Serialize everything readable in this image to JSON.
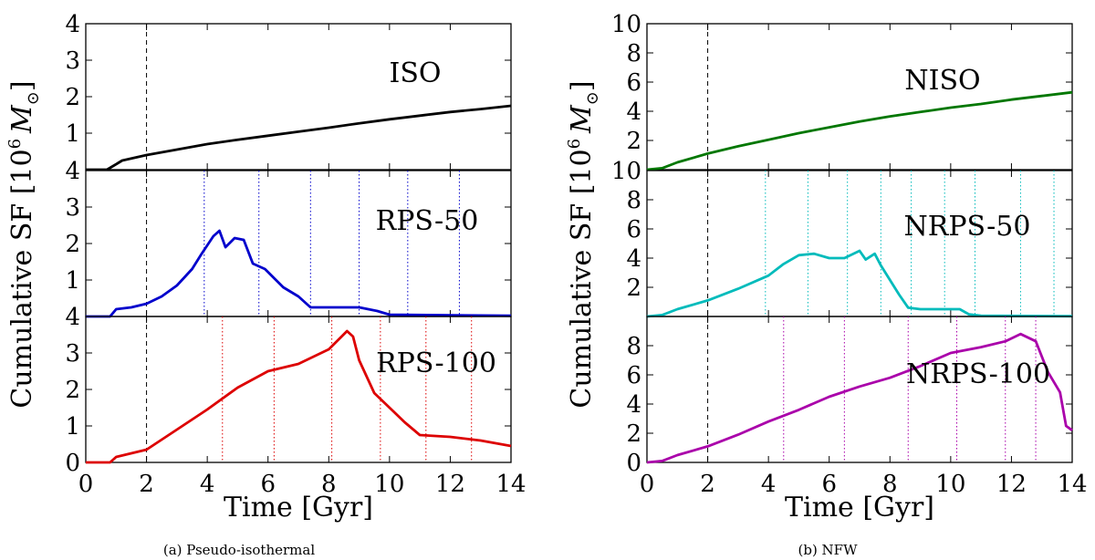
{
  "figure": {
    "ylabel": "Cumulative SF [10",
    "ylabel_sup": "6",
    "ylabel_unit": "M",
    "ylabel_sub": "⊙",
    "ylabel_close": "]",
    "xlabel": "Time [Gyr]"
  },
  "chart_data": [
    {
      "group": "(a) Pseudo-isothermal",
      "caption": "(a) Pseudo-isothermal",
      "type": "line",
      "xlim": [
        0,
        14
      ],
      "xticks": [
        "0",
        "2",
        "4",
        "6",
        "8",
        "10",
        "12",
        "14"
      ],
      "xlabel": "Time [Gyr]",
      "start_line_x": 2,
      "panels": [
        {
          "label": "ISO",
          "color": "#000000",
          "ylim": [
            0,
            4
          ],
          "yticks": [
            "1",
            "2",
            "3",
            "4"
          ],
          "marker_lines": [],
          "x": [
            0,
            0.7,
            0.9,
            1.2,
            2,
            3,
            4,
            5,
            6,
            7,
            8,
            9,
            10,
            11,
            12,
            13,
            14
          ],
          "y": [
            0,
            0,
            0.1,
            0.25,
            0.4,
            0.55,
            0.7,
            0.82,
            0.93,
            1.04,
            1.15,
            1.27,
            1.38,
            1.48,
            1.58,
            1.66,
            1.75
          ]
        },
        {
          "label": "RPS-50",
          "color": "#0000cc",
          "ylim": [
            0,
            4
          ],
          "yticks": [
            "1",
            "2",
            "3",
            "4"
          ],
          "marker_lines": [
            3.9,
            5.7,
            7.4,
            9.0,
            10.6,
            12.3
          ],
          "x": [
            0,
            0.8,
            1,
            1.5,
            2,
            2.5,
            3,
            3.5,
            3.8,
            4.2,
            4.4,
            4.6,
            4.9,
            5.2,
            5.5,
            5.9,
            6.5,
            7.0,
            7.4,
            8,
            9,
            9.6,
            10,
            14
          ],
          "y": [
            0,
            0,
            0.2,
            0.25,
            0.35,
            0.55,
            0.85,
            1.3,
            1.7,
            2.2,
            2.35,
            1.9,
            2.15,
            2.1,
            1.45,
            1.3,
            0.8,
            0.55,
            0.25,
            0.25,
            0.25,
            0.15,
            0.05,
            0.02
          ]
        },
        {
          "label": "RPS-100",
          "color": "#dd0000",
          "ylim": [
            0,
            4
          ],
          "yticks": [
            "0",
            "1",
            "2",
            "3",
            "4"
          ],
          "marker_lines": [
            4.5,
            6.2,
            8.1,
            9.7,
            11.2,
            12.7
          ],
          "x": [
            0,
            0.8,
            1,
            2,
            3,
            4,
            5,
            6,
            7,
            8,
            8.6,
            8.8,
            9,
            9.5,
            10,
            10.5,
            11,
            12,
            13,
            14
          ],
          "y": [
            0,
            0,
            0.15,
            0.35,
            0.9,
            1.45,
            2.05,
            2.5,
            2.7,
            3.1,
            3.6,
            3.45,
            2.8,
            1.9,
            1.5,
            1.1,
            0.75,
            0.7,
            0.6,
            0.45
          ]
        }
      ]
    },
    {
      "group": "(b) NFW",
      "caption": "(b) NFW",
      "type": "line",
      "xlim": [
        0,
        14
      ],
      "xticks": [
        "0",
        "2",
        "4",
        "6",
        "8",
        "10",
        "12",
        "14"
      ],
      "xlabel": "Time [Gyr]",
      "start_line_x": 2,
      "panels": [
        {
          "label": "NISO",
          "color": "#007700",
          "ylim": [
            0,
            10
          ],
          "yticks": [
            "2",
            "4",
            "6",
            "8",
            "10"
          ],
          "marker_lines": [],
          "x": [
            0,
            0.5,
            1,
            2,
            3,
            4,
            5,
            6,
            7,
            8,
            9,
            10,
            11,
            12,
            13,
            14
          ],
          "y": [
            0,
            0.1,
            0.5,
            1.1,
            1.6,
            2.05,
            2.5,
            2.9,
            3.3,
            3.65,
            3.95,
            4.25,
            4.5,
            4.8,
            5.05,
            5.3
          ]
        },
        {
          "label": "NRPS-50",
          "color": "#00bbbb",
          "ylim": [
            0,
            10
          ],
          "yticks": [
            "2",
            "4",
            "6",
            "8",
            "10"
          ],
          "marker_lines": [
            3.9,
            5.3,
            6.6,
            7.7,
            8.7,
            9.8,
            10.8,
            12.3,
            13.4
          ],
          "x": [
            0,
            0.5,
            1,
            2,
            3,
            4,
            4.5,
            5,
            5.5,
            6,
            6.5,
            7,
            7.2,
            7.5,
            7.7,
            8,
            8.3,
            8.6,
            9,
            10,
            10.3,
            10.6,
            11,
            14
          ],
          "y": [
            0,
            0.1,
            0.5,
            1.1,
            1.9,
            2.8,
            3.6,
            4.2,
            4.3,
            4.0,
            4.0,
            4.5,
            3.9,
            4.3,
            3.5,
            2.5,
            1.5,
            0.6,
            0.5,
            0.5,
            0.5,
            0.15,
            0.05,
            0.02
          ]
        },
        {
          "label": "NRPS-100",
          "color": "#aa00aa",
          "ylim": [
            0,
            10
          ],
          "yticks": [
            "0",
            "2",
            "4",
            "6",
            "8"
          ],
          "marker_lines": [
            4.5,
            6.5,
            8.6,
            10.2,
            11.8,
            12.8
          ],
          "x": [
            0,
            0.5,
            1,
            2,
            3,
            4,
            5,
            6,
            7,
            8,
            9,
            10,
            11,
            11.8,
            12.3,
            12.8,
            13.2,
            13.6,
            13.8,
            14
          ],
          "y": [
            0,
            0.1,
            0.5,
            1.1,
            1.9,
            2.8,
            3.6,
            4.5,
            5.2,
            5.8,
            6.6,
            7.5,
            7.9,
            8.3,
            8.8,
            8.3,
            6.2,
            4.8,
            2.5,
            2.2
          ]
        }
      ]
    }
  ]
}
